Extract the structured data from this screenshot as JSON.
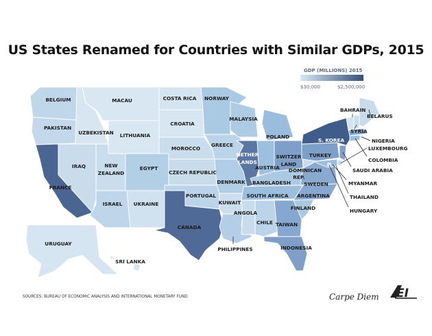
{
  "title": "US States Renamed for Countries with Similar GDPs, 2015",
  "legend": {
    "title": "GDP (MILLIONS) 2015",
    "min_label": "$30,000",
    "max_label": "$2,500,000",
    "color_low": "#d8e6f1",
    "color_high": "#34507e"
  },
  "source": "SOURCES: BUREAU OF ECONOMIC ANALYSIS AND INTERNATIONAL MONETARY FUND",
  "brand": {
    "text": "Carpe Diem",
    "logo": "AEI"
  },
  "map_labels": {
    "washington": "BELGIUM",
    "oregon": "PAKISTAN",
    "california": "FRANCE",
    "idaho": "UZBEKISTAN",
    "nevada": "IRAQ",
    "montana": "MACAU",
    "wyoming": "LITHUANIA",
    "utah": [
      "NEW",
      "ZEALAND"
    ],
    "arizona": "ISRAEL",
    "colorado": "EGYPT",
    "new_mexico": "UKRAINE",
    "north_dakota": "COSTA RICA",
    "south_dakota": "CROATIA",
    "nebraska": "MOROCCO",
    "kansas": "CZECH REPUBLIC",
    "oklahoma": "PORTUGAL",
    "texas": "CANADA",
    "minnesota": "NORWAY",
    "iowa": "GREECE",
    "missouri": "DENMARK",
    "arkansas": "KUWAIT",
    "louisiana": "PHILIPPINES",
    "wisconsin": "MALAYSIA",
    "illinois": [
      "NETHER",
      "LANDS"
    ],
    "indiana": "AUSTRIA",
    "michigan": "POLAND",
    "ohio": [
      "SWITZER",
      "LAND"
    ],
    "kentucky": "BANGLADESH",
    "tennessee": "SOUTH AFRICA",
    "mississippi": "ANGOLA",
    "alabama": "CHILE",
    "georgia": "TAIWAN",
    "florida": "INDONESIA",
    "south_carolina": "FINLAND",
    "north_carolina": "ARGENTINA",
    "virginia": "SWEDEN",
    "west_virginia": [
      "DOMINICAN",
      "REP."
    ],
    "pennsylvania": "TURKEY",
    "new_york": "S. KOREA",
    "alaska": "URUGUAY",
    "hawaii": "SRI LANKA",
    "vermont": "BAHRAIN",
    "maine": "BELARUS",
    "new_hampshire": "SYRIA",
    "rhode_island": "NIGERIA",
    "delaware": "LUXEMBOURG",
    "connecticut": "COLOMBIA",
    "new_jersey": "SAUDI ARABIA",
    "maryland": "MYANMAR",
    "massachusetts": "THAILAND",
    "dc": "HUNGARY"
  }
}
